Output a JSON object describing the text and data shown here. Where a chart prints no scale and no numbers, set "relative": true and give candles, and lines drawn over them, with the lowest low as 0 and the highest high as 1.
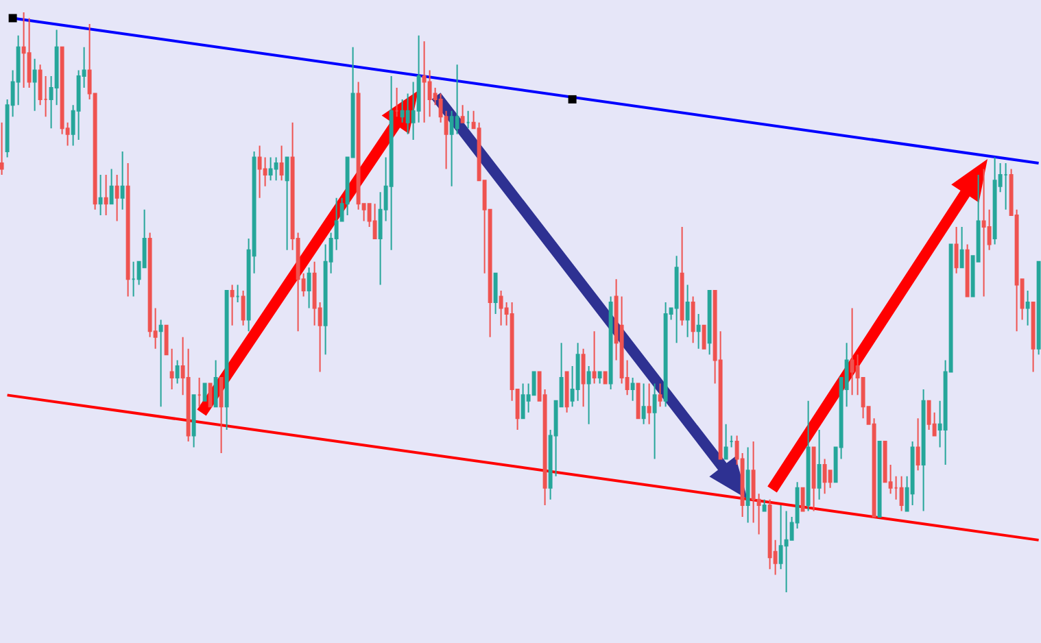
{
  "chart_data": {
    "type": "candlestick",
    "relative": true,
    "colors": [
      "#ef5350",
      "#26a69a",
      "#26a69a",
      "#26a69a",
      "#ef5350",
      "#ef5350",
      "#26a69a",
      "#ef5350",
      "#ef5350",
      "#26a69a",
      "#26a69a",
      "#ef5350",
      "#ef5350",
      "#26a69a",
      "#26a69a",
      "#26a69a",
      "#ef5350",
      "#ef5350",
      "#26a69a",
      "#ef5350",
      "#26a69a",
      "#ef5350",
      "#26a69a",
      "#ef5350",
      "#26a69a",
      "#26a69a",
      "#26a69a",
      "#ef5350",
      "#ef5350",
      "#26a69a",
      "#ef5350",
      "#ef5350",
      "#26a69a",
      "#ef5350",
      "#ef5350",
      "#26a69a",
      "#ef5350",
      "#26a69a",
      "#ef5350",
      "#26a69a",
      "#ef5350",
      "#26a69a",
      "#ef5350",
      "#26a69a",
      "#ef5350",
      "#26a69a",
      "#26a69a",
      "#ef5350",
      "#ef5350",
      "#26a69a",
      "#26a69a",
      "#ef5350",
      "#26a69a",
      "#ef5350",
      "#ef5350",
      "#ef5350",
      "#26a69a",
      "#ef5350",
      "#ef5350",
      "#26a69a",
      "#26a69a",
      "#26a69a",
      "#26a69a",
      "#26a69a",
      "#26a69a",
      "#ef5350",
      "#ef5350",
      "#ef5350",
      "#ef5350",
      "#26a69a",
      "#26a69a",
      "#26a69a",
      "#ef5350",
      "#26a69a",
      "#26a69a",
      "#26a69a",
      "#26a69a",
      "#ef5350",
      "#ef5350",
      "#ef5350",
      "#ef5350",
      "#ef5350",
      "#26a69a",
      "#26a69a",
      "#ef5350",
      "#26a69a",
      "#ef5350",
      "#ef5350",
      "#ef5350",
      "#ef5350",
      "#26a69a",
      "#ef5350",
      "#ef5350",
      "#ef5350",
      "#ef5350",
      "#26a69a",
      "#26a69a",
      "#26a69a",
      "#ef5350",
      "#ef5350",
      "#26a69a",
      "#26a69a",
      "#26a69a",
      "#ef5350",
      "#26a69a",
      "#26a69a",
      "#ef5350",
      "#26a69a",
      "#ef5350",
      "#26a69a",
      "#ef5350",
      "#26a69a",
      "#ef5350",
      "#ef5350",
      "#ef5350",
      "#26a69a",
      "#ef5350",
      "#26a69a",
      "#ef5350",
      "#26a69a",
      "#ef5350",
      "#26a69a",
      "#26a69a",
      "#26a69a",
      "#ef5350",
      "#26a69a",
      "#ef5350",
      "#26a69a",
      "#ef5350",
      "#26a69a",
      "#ef5350",
      "#ef5350",
      "#26a69a",
      "#26a69a",
      "#ef5350",
      "#ef5350",
      "#26a69a",
      "#ef5350",
      "#ef5350",
      "#26a69a",
      "#ef5350",
      "#ef5350",
      "#26a69a",
      "#26a69a",
      "#26a69a",
      "#26a69a",
      "#ef5350",
      "#26a69a",
      "#ef5350",
      "#26a69a",
      "#ef5350",
      "#ef5350",
      "#26a69a",
      "#26a69a",
      "#26a69a",
      "#ef5350",
      "#ef5350",
      "#ef5350",
      "#ef5350",
      "#ef5350",
      "#26a69a",
      "#ef5350",
      "#ef5350",
      "#ef5350",
      "#ef5350",
      "#26a69a",
      "#26a69a",
      "#ef5350",
      "#26a69a",
      "#ef5350",
      "#ef5350",
      "#26a69a",
      "#26a69a",
      "#26a69a",
      "#ef5350",
      "#26a69a",
      "#ef5350",
      "#26a69a",
      "#26a69a",
      "#ef5350",
      "#ef5350",
      "#26a69a",
      "#26a69a",
      "#26a69a",
      "#ef5350",
      "#ef5350",
      "#ef5350",
      "#26a69a",
      "#ef5350",
      "#26a69a"
    ],
    "categories": [
      null,
      null,
      null,
      null,
      null,
      null,
      null,
      null,
      null,
      null,
      null,
      null,
      null,
      null,
      null,
      null,
      null,
      null,
      null,
      null,
      null,
      null,
      null,
      null,
      null,
      null,
      null,
      null,
      null,
      null,
      null,
      null,
      null,
      null,
      null,
      null,
      null,
      null,
      null,
      null,
      null,
      null,
      null,
      null,
      null,
      null,
      null,
      null,
      null,
      null,
      null,
      null,
      null,
      null,
      null,
      null,
      null,
      null,
      null,
      null,
      null,
      null,
      null,
      null,
      null,
      null,
      null,
      null,
      null,
      null,
      null,
      null,
      null,
      null,
      null,
      null,
      null,
      null,
      null,
      null,
      null,
      null,
      null,
      null,
      null,
      null,
      null,
      null,
      null,
      null,
      null,
      null,
      null,
      null,
      null,
      null,
      null,
      null,
      null,
      null,
      null,
      null,
      null,
      null,
      null,
      null,
      null,
      null,
      null,
      null,
      null,
      null,
      null,
      null,
      null,
      null,
      null,
      null,
      null,
      null,
      null,
      null,
      null,
      null,
      null,
      null,
      null,
      null,
      null,
      null,
      null,
      null,
      null,
      null,
      null,
      null,
      null,
      null,
      null,
      null,
      null,
      null,
      null,
      null,
      null,
      null,
      null,
      null,
      null,
      null,
      null,
      null,
      null,
      null,
      null,
      null,
      null,
      null,
      null,
      null,
      null,
      null,
      null,
      null,
      null,
      null,
      null,
      null,
      null,
      null,
      null,
      null,
      null,
      null,
      null,
      null,
      null,
      null,
      null,
      null,
      null,
      null,
      null,
      null,
      null,
      null,
      null,
      null,
      null,
      null
    ],
    "ohlc": [
      [
        0.74,
        0.81,
        0.72,
        0.73
      ],
      [
        0.76,
        0.85,
        0.75,
        0.84
      ],
      [
        0.84,
        0.9,
        0.82,
        0.88
      ],
      [
        0.88,
        0.96,
        0.84,
        0.94
      ],
      [
        0.94,
        1.0,
        0.87,
        0.93
      ],
      [
        0.93,
        0.99,
        0.87,
        0.88
      ],
      [
        0.88,
        0.92,
        0.83,
        0.9
      ],
      [
        0.9,
        0.91,
        0.84,
        0.85
      ],
      [
        0.85,
        0.89,
        0.82,
        0.85
      ],
      [
        0.85,
        0.89,
        0.8,
        0.87
      ],
      [
        0.87,
        0.97,
        0.84,
        0.94
      ],
      [
        0.94,
        0.94,
        0.79,
        0.8
      ],
      [
        0.8,
        0.81,
        0.77,
        0.79
      ],
      [
        0.79,
        0.84,
        0.77,
        0.83
      ],
      [
        0.83,
        0.9,
        0.78,
        0.89
      ],
      [
        0.89,
        0.94,
        0.87,
        0.9
      ],
      [
        0.9,
        0.98,
        0.85,
        0.86
      ],
      [
        0.86,
        0.86,
        0.66,
        0.67
      ],
      [
        0.67,
        0.72,
        0.65,
        0.68
      ],
      [
        0.68,
        0.72,
        0.65,
        0.67
      ],
      [
        0.67,
        0.73,
        0.67,
        0.7
      ],
      [
        0.7,
        0.72,
        0.64,
        0.68
      ],
      [
        0.68,
        0.76,
        0.66,
        0.7
      ],
      [
        0.7,
        0.74,
        0.51,
        0.54
      ],
      [
        0.54,
        0.57,
        0.51,
        0.54
      ],
      [
        0.54,
        0.57,
        0.53,
        0.57
      ],
      [
        0.56,
        0.66,
        0.56,
        0.61
      ],
      [
        0.61,
        0.62,
        0.44,
        0.45
      ],
      [
        0.45,
        0.49,
        0.42,
        0.44
      ],
      [
        0.45,
        0.47,
        0.32,
        0.46
      ],
      [
        0.46,
        0.46,
        0.41,
        0.41
      ],
      [
        0.38,
        0.42,
        0.35,
        0.37
      ],
      [
        0.37,
        0.4,
        0.36,
        0.39
      ],
      [
        0.39,
        0.44,
        0.34,
        0.37
      ],
      [
        0.37,
        0.42,
        0.26,
        0.27
      ],
      [
        0.27,
        0.34,
        0.25,
        0.34
      ],
      [
        0.34,
        0.37,
        0.32,
        0.34
      ],
      [
        0.33,
        0.36,
        0.33,
        0.36
      ],
      [
        0.36,
        0.36,
        0.32,
        0.32
      ],
      [
        0.32,
        0.4,
        0.32,
        0.37
      ],
      [
        0.37,
        0.37,
        0.24,
        0.32
      ],
      [
        0.32,
        0.52,
        0.28,
        0.52
      ],
      [
        0.52,
        0.53,
        0.46,
        0.51
      ],
      [
        0.51,
        0.53,
        0.5,
        0.51
      ],
      [
        0.51,
        0.52,
        0.46,
        0.47
      ],
      [
        0.47,
        0.61,
        0.45,
        0.59
      ],
      [
        0.58,
        0.76,
        0.55,
        0.75
      ],
      [
        0.75,
        0.77,
        0.68,
        0.73
      ],
      [
        0.73,
        0.75,
        0.7,
        0.72
      ],
      [
        0.72,
        0.75,
        0.71,
        0.73
      ],
      [
        0.73,
        0.75,
        0.71,
        0.74
      ],
      [
        0.74,
        0.77,
        0.71,
        0.72
      ],
      [
        0.71,
        0.75,
        0.59,
        0.75
      ],
      [
        0.75,
        0.81,
        0.59,
        0.61
      ],
      [
        0.61,
        0.62,
        0.45,
        0.54
      ],
      [
        0.54,
        0.55,
        0.51,
        0.52
      ],
      [
        0.52,
        0.56,
        0.49,
        0.55
      ],
      [
        0.55,
        0.57,
        0.46,
        0.49
      ],
      [
        0.49,
        0.5,
        0.38,
        0.46
      ],
      [
        0.46,
        0.6,
        0.41,
        0.57
      ],
      [
        0.57,
        0.62,
        0.55,
        0.61
      ],
      [
        0.61,
        0.68,
        0.59,
        0.64
      ],
      [
        0.64,
        0.68,
        0.64,
        0.67
      ],
      [
        0.67,
        0.75,
        0.65,
        0.75
      ],
      [
        0.75,
        0.94,
        0.75,
        0.86
      ],
      [
        0.86,
        0.88,
        0.66,
        0.67
      ],
      [
        0.67,
        0.67,
        0.64,
        0.66
      ],
      [
        0.67,
        0.67,
        0.63,
        0.64
      ],
      [
        0.64,
        0.67,
        0.61,
        0.61
      ],
      [
        0.61,
        0.69,
        0.53,
        0.66
      ],
      [
        0.66,
        0.75,
        0.64,
        0.7
      ],
      [
        0.7,
        0.89,
        0.59,
        0.83
      ],
      [
        0.83,
        0.87,
        0.82,
        0.83
      ],
      [
        0.82,
        0.85,
        0.81,
        0.83
      ],
      [
        0.81,
        0.86,
        0.79,
        0.83
      ],
      [
        0.81,
        0.88,
        0.78,
        0.83
      ],
      [
        0.83,
        0.96,
        0.81,
        0.89
      ],
      [
        0.89,
        0.95,
        0.81,
        0.88
      ],
      [
        0.88,
        0.9,
        0.82,
        0.85
      ],
      [
        0.86,
        0.87,
        0.84,
        0.85
      ],
      [
        0.85,
        0.86,
        0.81,
        0.82
      ],
      [
        0.82,
        0.83,
        0.73,
        0.79
      ],
      [
        0.79,
        0.83,
        0.7,
        0.82
      ],
      [
        0.8,
        0.91,
        0.79,
        0.82
      ],
      [
        0.82,
        0.84,
        0.81,
        0.81
      ],
      [
        0.81,
        0.83,
        0.8,
        0.81
      ],
      [
        0.81,
        0.83,
        0.8,
        0.8
      ],
      [
        0.8,
        0.81,
        0.71,
        0.71
      ],
      [
        0.71,
        0.71,
        0.55,
        0.66
      ],
      [
        0.66,
        0.66,
        0.44,
        0.5
      ],
      [
        0.5,
        0.55,
        0.48,
        0.55
      ],
      [
        0.51,
        0.52,
        0.46,
        0.49
      ],
      [
        0.49,
        0.5,
        0.46,
        0.48
      ],
      [
        0.48,
        0.5,
        0.33,
        0.35
      ],
      [
        0.35,
        0.35,
        0.28,
        0.3
      ],
      [
        0.3,
        0.36,
        0.3,
        0.34
      ],
      [
        0.33,
        0.36,
        0.31,
        0.34
      ],
      [
        0.34,
        0.38,
        0.34,
        0.38
      ],
      [
        0.38,
        0.38,
        0.33,
        0.33
      ],
      [
        0.34,
        0.35,
        0.15,
        0.18
      ],
      [
        0.18,
        0.28,
        0.16,
        0.27
      ],
      [
        0.27,
        0.33,
        0.2,
        0.33
      ],
      [
        0.32,
        0.43,
        0.32,
        0.37
      ],
      [
        0.38,
        0.38,
        0.31,
        0.32
      ],
      [
        0.33,
        0.39,
        0.32,
        0.35
      ],
      [
        0.35,
        0.43,
        0.33,
        0.41
      ],
      [
        0.41,
        0.42,
        0.32,
        0.36
      ],
      [
        0.36,
        0.39,
        0.29,
        0.38
      ],
      [
        0.38,
        0.45,
        0.36,
        0.37
      ],
      [
        0.37,
        0.38,
        0.36,
        0.38
      ],
      [
        0.38,
        0.38,
        0.36,
        0.36
      ],
      [
        0.36,
        0.51,
        0.35,
        0.5
      ],
      [
        0.51,
        0.54,
        0.4,
        0.43
      ],
      [
        0.46,
        0.51,
        0.36,
        0.37
      ],
      [
        0.37,
        0.4,
        0.34,
        0.35
      ],
      [
        0.35,
        0.37,
        0.33,
        0.36
      ],
      [
        0.36,
        0.36,
        0.3,
        0.3
      ],
      [
        0.3,
        0.36,
        0.29,
        0.32
      ],
      [
        0.32,
        0.36,
        0.29,
        0.31
      ],
      [
        0.31,
        0.36,
        0.23,
        0.34
      ],
      [
        0.34,
        0.36,
        0.32,
        0.33
      ],
      [
        0.33,
        0.5,
        0.32,
        0.48
      ],
      [
        0.48,
        0.49,
        0.47,
        0.49
      ],
      [
        0.49,
        0.58,
        0.43,
        0.56
      ],
      [
        0.55,
        0.63,
        0.46,
        0.47
      ],
      [
        0.47,
        0.53,
        0.44,
        0.5
      ],
      [
        0.5,
        0.51,
        0.43,
        0.45
      ],
      [
        0.45,
        0.48,
        0.42,
        0.46
      ],
      [
        0.46,
        0.46,
        0.42,
        0.42
      ],
      [
        0.43,
        0.52,
        0.41,
        0.52
      ],
      [
        0.52,
        0.52,
        0.36,
        0.4
      ],
      [
        0.4,
        0.45,
        0.23,
        0.23
      ],
      [
        0.23,
        0.29,
        0.23,
        0.25
      ],
      [
        0.26,
        0.27,
        0.25,
        0.26
      ],
      [
        0.26,
        0.27,
        0.22,
        0.23
      ],
      [
        0.23,
        0.24,
        0.13,
        0.15
      ],
      [
        0.15,
        0.25,
        0.12,
        0.21
      ],
      [
        0.21,
        0.26,
        0.12,
        0.16
      ],
      [
        0.16,
        0.17,
        0.1,
        0.15
      ],
      [
        0.14,
        0.16,
        0.14,
        0.15
      ],
      [
        0.15,
        0.16,
        0.04,
        0.06
      ],
      [
        0.07,
        0.09,
        0.03,
        0.05
      ],
      [
        0.05,
        0.15,
        0.04,
        0.08
      ],
      [
        0.08,
        0.14,
        0.0,
        0.09
      ],
      [
        0.09,
        0.13,
        0.09,
        0.12
      ],
      [
        0.12,
        0.19,
        0.11,
        0.18
      ],
      [
        0.18,
        0.18,
        0.14,
        0.14
      ],
      [
        0.15,
        0.33,
        0.14,
        0.25
      ],
      [
        0.25,
        0.25,
        0.14,
        0.18
      ],
      [
        0.18,
        0.28,
        0.16,
        0.22
      ],
      [
        0.22,
        0.23,
        0.17,
        0.19
      ],
      [
        0.21,
        0.21,
        0.18,
        0.19
      ],
      [
        0.19,
        0.25,
        0.19,
        0.25
      ],
      [
        0.25,
        0.37,
        0.23,
        0.37
      ],
      [
        0.35,
        0.43,
        0.32,
        0.4
      ],
      [
        0.4,
        0.49,
        0.34,
        0.38
      ],
      [
        0.39,
        0.41,
        0.34,
        0.37
      ],
      [
        0.37,
        0.37,
        0.3,
        0.32
      ],
      [
        0.32,
        0.32,
        0.29,
        0.29
      ],
      [
        0.29,
        0.3,
        0.13,
        0.13
      ],
      [
        0.13,
        0.26,
        0.13,
        0.26
      ],
      [
        0.26,
        0.26,
        0.19,
        0.19
      ],
      [
        0.19,
        0.22,
        0.17,
        0.18
      ],
      [
        0.18,
        0.2,
        0.16,
        0.18
      ],
      [
        0.18,
        0.2,
        0.14,
        0.15
      ],
      [
        0.14,
        0.2,
        0.14,
        0.18
      ],
      [
        0.17,
        0.26,
        0.15,
        0.25
      ],
      [
        0.25,
        0.3,
        0.21,
        0.22
      ],
      [
        0.22,
        0.35,
        0.14,
        0.33
      ],
      [
        0.33,
        0.33,
        0.28,
        0.29
      ],
      [
        0.29,
        0.31,
        0.27,
        0.27
      ],
      [
        0.28,
        0.33,
        0.25,
        0.29
      ],
      [
        0.28,
        0.4,
        0.22,
        0.38
      ],
      [
        0.38,
        0.6,
        0.38,
        0.6
      ],
      [
        0.6,
        0.63,
        0.55,
        0.56
      ],
      [
        0.56,
        0.63,
        0.56,
        0.59
      ],
      [
        0.59,
        0.6,
        0.51,
        0.51
      ],
      [
        0.51,
        0.58,
        0.51,
        0.58
      ],
      [
        0.57,
        0.72,
        0.57,
        0.64
      ],
      [
        0.64,
        0.73,
        0.51,
        0.63
      ],
      [
        0.63,
        0.66,
        0.59,
        0.6
      ],
      [
        0.61,
        0.75,
        0.6,
        0.71
      ],
      [
        0.7,
        0.74,
        0.69,
        0.72
      ],
      [
        0.72,
        0.74,
        0.66,
        0.72
      ],
      [
        0.72,
        0.73,
        0.65,
        0.65
      ],
      [
        0.65,
        0.66,
        0.45,
        0.53
      ],
      [
        0.54,
        0.54,
        0.47,
        0.49
      ],
      [
        0.49,
        0.52,
        0.46,
        0.5
      ],
      [
        0.5,
        0.5,
        0.38,
        0.42
      ],
      [
        0.42,
        0.57,
        0.41,
        0.57
      ]
    ],
    "series": [
      {
        "type": "line",
        "color": "#0000ff",
        "values": [
          null,
          null,
          0.99,
          null,
          null,
          null,
          null,
          null,
          null,
          null,
          null,
          null,
          null,
          null,
          null,
          null,
          null,
          null,
          null,
          null,
          null,
          null,
          null,
          null,
          null,
          null,
          null,
          null,
          null,
          null,
          null,
          null,
          null,
          null,
          null,
          null,
          null,
          null,
          null,
          null,
          null,
          null,
          null,
          null,
          null,
          null,
          null,
          null,
          null,
          null,
          null,
          null,
          null,
          null,
          null,
          null,
          null,
          null,
          null,
          null,
          null,
          null,
          null,
          null,
          null,
          null,
          null,
          null,
          null,
          null,
          null,
          null,
          null,
          null,
          null,
          null,
          null,
          null,
          null,
          null,
          null,
          null,
          null,
          null,
          null,
          null,
          null,
          null,
          null,
          null,
          null,
          null,
          null,
          null,
          null,
          null,
          null,
          null,
          null,
          null,
          null,
          null,
          null,
          null,
          null,
          null,
          null,
          null,
          null,
          null,
          null,
          null,
          null,
          null,
          null,
          null,
          null,
          null,
          null,
          null,
          null,
          null,
          null,
          null,
          null,
          null,
          null,
          null,
          null,
          null,
          null,
          null,
          null,
          null,
          null,
          null,
          null,
          null,
          null,
          null,
          null,
          null,
          null,
          null,
          null,
          null,
          null,
          null,
          null,
          null,
          null,
          null,
          null,
          null,
          null,
          null,
          null,
          null,
          null,
          null,
          null,
          null,
          null,
          null,
          null,
          null,
          null,
          null,
          null,
          null,
          null,
          null,
          null,
          null,
          null,
          null,
          null,
          null,
          null,
          null,
          null,
          null,
          null,
          null,
          null,
          null,
          null,
          null,
          null,
          0.74
        ]
      },
      {
        "type": "line",
        "color": "#ff0000",
        "values": [
          null,
          0.34,
          null,
          null,
          null,
          null,
          null,
          null,
          null,
          null,
          null,
          null,
          null,
          null,
          null,
          null,
          null,
          null,
          null,
          null,
          null,
          null,
          null,
          null,
          null,
          null,
          null,
          null,
          null,
          null,
          null,
          null,
          null,
          null,
          null,
          null,
          null,
          null,
          null,
          null,
          null,
          null,
          null,
          null,
          null,
          null,
          null,
          null,
          null,
          null,
          null,
          null,
          null,
          null,
          null,
          null,
          null,
          null,
          null,
          null,
          null,
          null,
          null,
          null,
          null,
          null,
          null,
          null,
          null,
          null,
          null,
          null,
          null,
          null,
          null,
          null,
          null,
          null,
          null,
          null,
          null,
          null,
          null,
          null,
          null,
          null,
          null,
          null,
          null,
          null,
          null,
          null,
          null,
          null,
          null,
          null,
          null,
          null,
          null,
          null,
          null,
          null,
          null,
          null,
          null,
          null,
          null,
          null,
          null,
          null,
          null,
          null,
          null,
          null,
          null,
          null,
          null,
          null,
          null,
          null,
          null,
          null,
          null,
          null,
          null,
          null,
          null,
          null,
          null,
          null,
          null,
          null,
          null,
          null,
          null,
          null,
          null,
          null,
          null,
          null,
          null,
          null,
          null,
          null,
          null,
          null,
          null,
          null,
          null,
          null,
          null,
          null,
          null,
          null,
          null,
          null,
          null,
          null,
          null,
          null,
          null,
          null,
          null,
          null,
          null,
          null,
          null,
          null,
          null,
          null,
          null,
          null,
          null,
          null,
          null,
          null,
          null,
          null,
          null,
          null,
          null,
          null,
          null,
          null,
          null,
          null,
          null,
          null,
          null,
          0.09
        ]
      },
      {
        "type": "scatter",
        "color": "#000000",
        "marker": "square",
        "values": [
          null,
          null,
          0.99,
          null,
          null,
          null,
          null,
          null,
          null,
          null,
          null,
          null,
          null,
          null,
          null,
          null,
          null,
          null,
          null,
          null,
          null,
          null,
          null,
          null,
          null,
          null,
          null,
          null,
          null,
          null,
          null,
          null,
          null,
          null,
          null,
          null,
          null,
          null,
          null,
          null,
          null,
          null,
          null,
          null,
          null,
          null,
          null,
          null,
          null,
          null,
          null,
          null,
          null,
          null,
          null,
          null,
          null,
          null,
          null,
          null,
          null,
          null,
          null,
          null,
          null,
          null,
          null,
          null,
          null,
          null,
          null,
          null,
          null,
          null,
          null,
          null,
          null,
          null,
          null,
          null,
          null,
          null,
          null,
          null,
          null,
          null,
          null,
          null,
          null,
          null,
          null,
          null,
          null,
          null,
          null,
          null,
          null,
          null,
          null,
          null,
          null,
          null,
          null,
          null,
          0.85,
          null,
          null,
          null,
          null,
          null,
          null,
          null,
          null,
          null,
          null,
          null,
          null,
          null,
          null,
          null,
          null,
          null,
          null,
          null,
          null,
          null,
          null,
          null,
          null,
          null,
          null,
          null,
          null,
          null,
          null,
          null,
          null,
          null,
          null,
          null,
          null,
          null,
          null,
          null,
          null,
          null,
          null,
          null,
          null,
          null,
          null,
          null,
          null,
          null,
          null,
          null,
          null,
          null,
          null,
          null,
          null,
          null,
          null,
          null,
          null,
          null,
          null,
          null,
          null,
          null,
          null,
          null,
          null,
          null,
          null,
          null,
          null,
          null,
          null,
          null,
          null,
          null,
          null,
          null,
          null,
          null,
          null,
          null,
          null,
          null
        ]
      }
    ]
  }
}
